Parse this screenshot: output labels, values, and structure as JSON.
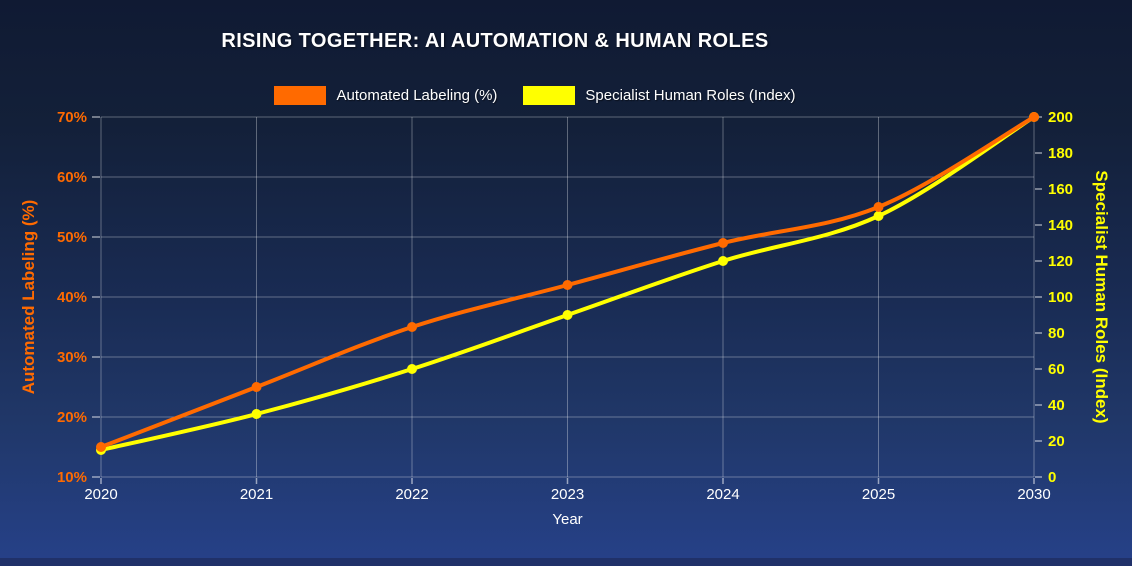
{
  "chart_data": {
    "type": "line",
    "title": "RISING TOGETHER: AI AUTOMATION & HUMAN ROLES",
    "xlabel": "Year",
    "categories": [
      "2020",
      "2021",
      "2022",
      "2023",
      "2024",
      "2025",
      "2030"
    ],
    "series": [
      {
        "name": "Automated Labeling (%)",
        "color": "#ff6a00",
        "axis": "left",
        "values": [
          15,
          25,
          35,
          42,
          49,
          55,
          70
        ]
      },
      {
        "name": "Specialist Human Roles (Index)",
        "color": "#ffff00",
        "axis": "right",
        "values": [
          15,
          35,
          60,
          90,
          120,
          145,
          200
        ]
      }
    ],
    "axes": {
      "left": {
        "label": "Automated Labeling (%)",
        "min": 10,
        "max": 70,
        "step": 10,
        "suffix": "%",
        "color": "#ff6a00"
      },
      "right": {
        "label": "Specialist Human Roles (Index)",
        "min": 0,
        "max": 200,
        "step": 20,
        "suffix": "",
        "color": "#ffff00"
      }
    },
    "grid": true,
    "legend_position": "top",
    "tick_text_color": "#ffffff",
    "grid_color": "rgba(255,255,255,0.32)",
    "tick_mark_color": "rgba(255,255,255,0.55)"
  },
  "background": {
    "top": "#101a33",
    "bottom": "#264189",
    "footer": "#203169"
  }
}
